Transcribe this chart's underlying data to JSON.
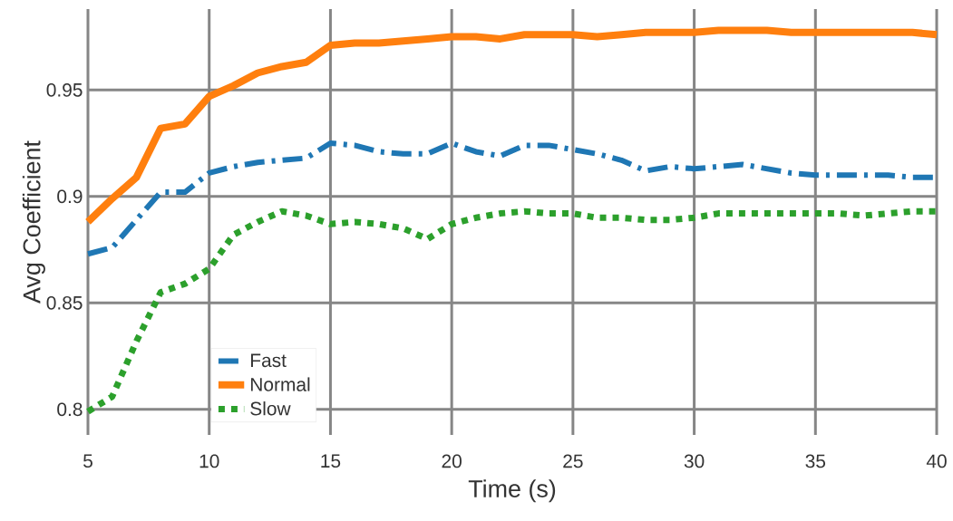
{
  "chart_data": {
    "type": "line",
    "xlabel": "Time (s)",
    "ylabel": "Avg Coefficient",
    "x": [
      5,
      6,
      7,
      8,
      9,
      10,
      11,
      12,
      13,
      14,
      15,
      16,
      17,
      18,
      19,
      20,
      21,
      22,
      23,
      24,
      25,
      26,
      27,
      28,
      29,
      30,
      31,
      32,
      33,
      34,
      35,
      36,
      37,
      38,
      39,
      40
    ],
    "series": [
      {
        "name": "Fast",
        "color": "#1f77b4",
        "line_style": "dashdot",
        "values": [
          0.873,
          0.876,
          0.889,
          0.902,
          0.902,
          0.911,
          0.914,
          0.916,
          0.917,
          0.918,
          0.925,
          0.924,
          0.921,
          0.92,
          0.92,
          0.925,
          0.921,
          0.919,
          0.924,
          0.924,
          0.922,
          0.92,
          0.917,
          0.912,
          0.914,
          0.913,
          0.914,
          0.915,
          0.913,
          0.911,
          0.91,
          0.91,
          0.91,
          0.91,
          0.909,
          0.909
        ]
      },
      {
        "name": "Normal",
        "color": "#ff7f0e",
        "line_style": "solid",
        "values": [
          0.888,
          0.899,
          0.909,
          0.932,
          0.934,
          0.947,
          0.952,
          0.958,
          0.961,
          0.963,
          0.971,
          0.972,
          0.972,
          0.973,
          0.974,
          0.975,
          0.975,
          0.974,
          0.976,
          0.976,
          0.976,
          0.975,
          0.976,
          0.977,
          0.977,
          0.977,
          0.978,
          0.978,
          0.978,
          0.977,
          0.977,
          0.977,
          0.977,
          0.977,
          0.977,
          0.976
        ]
      },
      {
        "name": "Slow",
        "color": "#2ca02c",
        "line_style": "dotted",
        "values": [
          0.799,
          0.806,
          0.832,
          0.855,
          0.859,
          0.866,
          0.882,
          0.888,
          0.893,
          0.891,
          0.887,
          0.888,
          0.887,
          0.885,
          0.88,
          0.887,
          0.89,
          0.892,
          0.893,
          0.892,
          0.892,
          0.89,
          0.89,
          0.889,
          0.889,
          0.89,
          0.892,
          0.892,
          0.892,
          0.892,
          0.892,
          0.892,
          0.891,
          0.892,
          0.893,
          0.893
        ]
      }
    ],
    "xlim": [
      5,
      40
    ],
    "ylim": [
      0.788,
      0.988
    ],
    "xticks": [
      5,
      10,
      15,
      20,
      25,
      30,
      35,
      40
    ],
    "yticks": [
      0.8,
      0.85,
      0.9,
      0.95
    ],
    "grid": true,
    "legend": "bottom left"
  }
}
